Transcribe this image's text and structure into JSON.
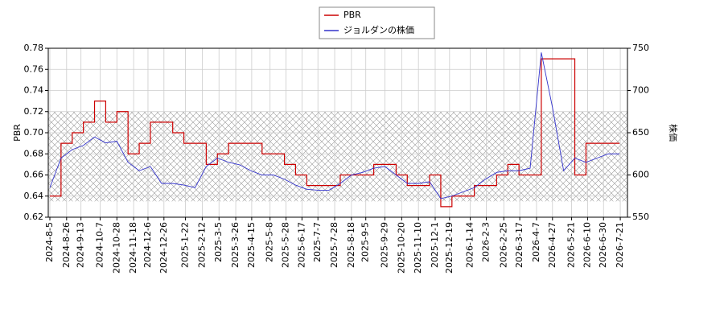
{
  "chart_data": {
    "type": "line",
    "legend_position": "upper center",
    "grid": true,
    "y_label": "PBR",
    "y2_label": "株価",
    "band": [
      0.635,
      0.72
    ],
    "xlim": [
      "2024-8-3",
      "2026-7-30"
    ],
    "ylim": [
      0.62,
      0.78
    ],
    "yticks": [
      {
        "value": 0.62,
        "label": "0.62"
      },
      {
        "value": 0.64,
        "label": "0.64"
      },
      {
        "value": 0.66,
        "label": "0.66"
      },
      {
        "value": 0.68,
        "label": "0.68"
      },
      {
        "value": 0.7,
        "label": "0.70"
      },
      {
        "value": 0.72,
        "label": "0.72"
      },
      {
        "value": 0.74,
        "label": "0.74"
      },
      {
        "value": 0.76,
        "label": "0.76"
      },
      {
        "value": 0.78,
        "label": "0.78"
      }
    ],
    "y2lim": [
      550,
      750
    ],
    "y2ticks": [
      550,
      600,
      650,
      700,
      750
    ],
    "xticks": [
      "2024-8-5",
      "2024-8-26",
      "2024-9-13",
      "2024-10-7",
      "2024-10-28",
      "2024-11-18",
      "2024-12-6",
      "2024-12-26",
      "2025-1-22",
      "2025-2-12",
      "2025-3-5",
      "2025-3-26",
      "2025-4-15",
      "2025-5-8",
      "2025-5-28",
      "2025-6-17",
      "2025-7-7",
      "2025-7-28",
      "2025-8-18",
      "2025-9-5",
      "2025-9-29",
      "2025-10-20",
      "2025-11-10",
      "2025-12-1",
      "2025-12-19",
      "2026-1-14",
      "2026-2-3",
      "2026-2-25",
      "2026-3-17",
      "2026-4-7",
      "2026-4-27",
      "2026-5-21",
      "2026-6-10",
      "2026-6-30",
      "2026-7-21"
    ],
    "x": [
      "2024-8-5",
      "2024-8-19",
      "2024-9-2",
      "2024-9-16",
      "2024-9-30",
      "2024-10-14",
      "2024-10-28",
      "2024-11-11",
      "2024-11-25",
      "2024-12-9",
      "2024-12-23",
      "2025-1-6",
      "2025-1-20",
      "2025-2-3",
      "2025-2-17",
      "2025-3-3",
      "2025-3-17",
      "2025-3-31",
      "2025-4-14",
      "2025-4-28",
      "2025-5-12",
      "2025-5-26",
      "2025-6-9",
      "2025-6-23",
      "2025-7-7",
      "2025-7-21",
      "2025-8-4",
      "2025-8-18",
      "2025-9-1",
      "2025-9-15",
      "2025-9-29",
      "2025-10-13",
      "2025-10-27",
      "2025-11-10",
      "2025-11-24",
      "2025-12-8",
      "2025-12-22",
      "2026-1-5",
      "2026-1-19",
      "2026-2-2",
      "2026-2-16",
      "2026-3-2",
      "2026-3-16",
      "2026-3-30",
      "2026-4-13",
      "2026-4-27",
      "2026-5-11",
      "2026-5-25",
      "2026-6-8",
      "2026-6-22",
      "2026-7-6",
      "2026-7-20"
    ],
    "series": [
      {
        "name": "PBR",
        "color": "#cc0000",
        "step": true,
        "values": [
          0.64,
          0.69,
          0.7,
          0.71,
          0.73,
          0.71,
          0.72,
          0.68,
          0.69,
          0.71,
          0.71,
          0.7,
          0.69,
          0.69,
          0.67,
          0.68,
          0.69,
          0.69,
          0.69,
          0.68,
          0.68,
          0.67,
          0.66,
          0.65,
          0.65,
          0.65,
          0.66,
          0.66,
          0.66,
          0.67,
          0.67,
          0.66,
          0.65,
          0.65,
          0.66,
          0.63,
          0.64,
          0.64,
          0.65,
          0.65,
          0.66,
          0.67,
          0.66,
          0.66,
          0.77,
          0.77,
          0.77,
          0.66,
          0.69,
          0.69,
          0.69,
          0.69
        ]
      },
      {
        "name": "ジョルダンの株価",
        "color": "#3333cc",
        "axis": "y2",
        "values": [
          585,
          620,
          630,
          635,
          645,
          638,
          640,
          615,
          605,
          610,
          590,
          590,
          588,
          585,
          610,
          620,
          615,
          612,
          605,
          600,
          600,
          595,
          588,
          583,
          582,
          582,
          590,
          600,
          603,
          608,
          610,
          600,
          590,
          590,
          592,
          572,
          575,
          580,
          585,
          595,
          603,
          605,
          605,
          608,
          745,
          680,
          605,
          620,
          615,
          620,
          625,
          625
        ]
      }
    ]
  }
}
